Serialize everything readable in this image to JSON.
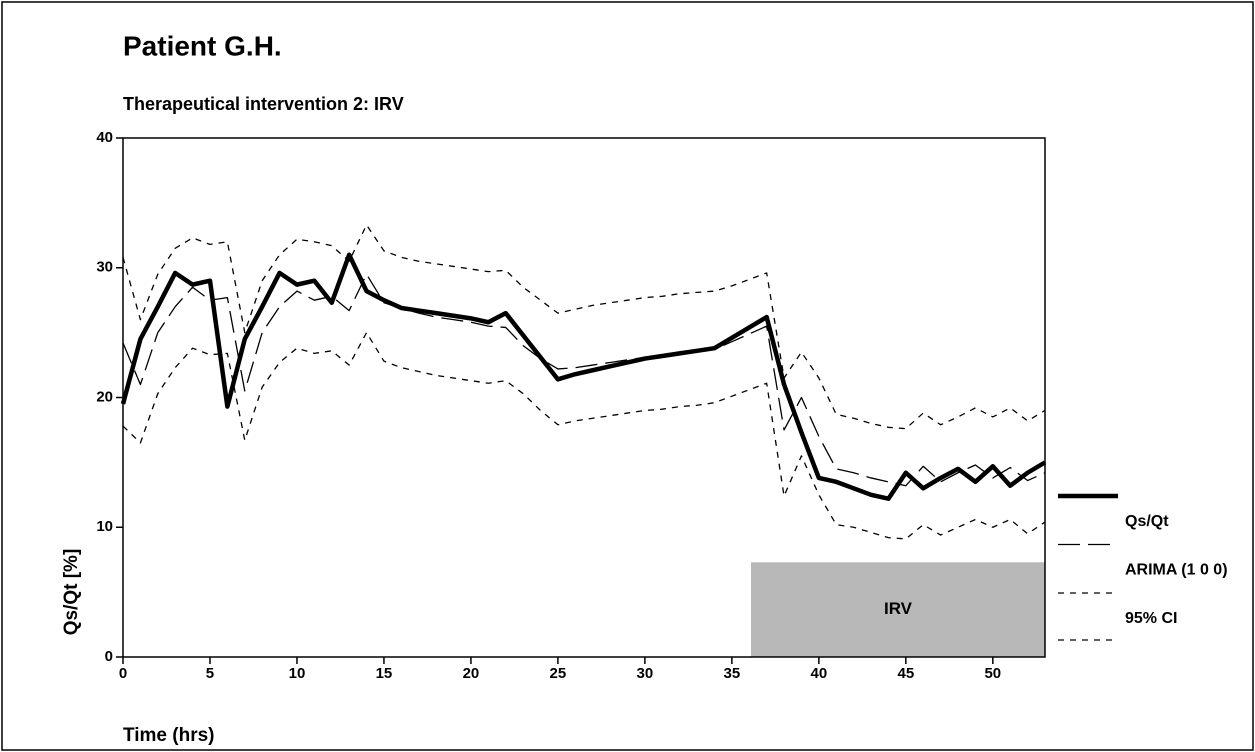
{
  "chart_data": {
    "type": "line",
    "title": "Patient G.H.",
    "subtitle": "Therapeutical intervention 2: IRV",
    "x_label": "Time (hrs)",
    "y_label": "Qs/Qt [%]",
    "x": [
      0,
      1,
      2,
      3,
      4,
      5,
      6,
      7,
      8,
      9,
      10,
      11,
      12,
      13,
      14,
      15,
      16,
      17,
      18,
      19,
      20,
      21,
      22,
      23,
      24,
      25,
      26,
      27,
      28,
      29,
      30,
      31,
      32,
      33,
      34,
      35,
      36,
      37,
      38,
      39,
      40,
      41,
      42,
      43,
      44,
      45,
      46,
      47,
      48,
      49,
      50,
      51,
      52,
      53
    ],
    "xlim": [
      0,
      53
    ],
    "xticks": [
      0,
      5,
      10,
      15,
      20,
      25,
      30,
      35,
      40,
      45,
      50
    ],
    "ylim": [
      0,
      40
    ],
    "yticks": [
      0,
      10,
      20,
      30,
      40
    ],
    "series": [
      {
        "name": "Qs/Qt",
        "color": "#000000",
        "style": "solid",
        "values": [
          19.5,
          24.5,
          27,
          29.6,
          28.7,
          29,
          19.3,
          24.5,
          27,
          29.6,
          28.7,
          29,
          27.3,
          31,
          28.2,
          27.5,
          26.9,
          26.7,
          26.5,
          26.3,
          26.1,
          25.8,
          26.5,
          24.8,
          23.1,
          21.4,
          21.8,
          22.1,
          22.4,
          22.7,
          23,
          23.2,
          23.4,
          23.6,
          23.8,
          24.6,
          25.4,
          26.2,
          21,
          17.3,
          13.8,
          13.5,
          13,
          12.5,
          12.2,
          14.2,
          13,
          13.8,
          14.5,
          13.5,
          14.7,
          13.2,
          14.2,
          15
        ]
      },
      {
        "name": "ARIMA (1 0 0)",
        "color": "#000000",
        "style": "longdash",
        "values": [
          24.2,
          21,
          25,
          27,
          28.5,
          27.5,
          27.7,
          20.5,
          25,
          27,
          28.2,
          27.5,
          27.8,
          26.7,
          29.5,
          27.3,
          26.9,
          26.5,
          26.2,
          26,
          25.8,
          25.5,
          25.4,
          24,
          23,
          22.2,
          22.3,
          22.5,
          22.7,
          22.9,
          23.1,
          23.3,
          23.5,
          23.6,
          23.7,
          24.3,
          24.9,
          25.5,
          17.5,
          20,
          17,
          14.5,
          14.2,
          13.8,
          13.5,
          13.2,
          14.7,
          13.5,
          14.2,
          14.8,
          13.8,
          14.6,
          13.6,
          14.2
        ]
      },
      {
        "name": "95% CI",
        "color": "#000000",
        "style": "shortdash",
        "upper": [
          30.8,
          26,
          29.5,
          31.5,
          32.3,
          31.8,
          32,
          25,
          29,
          31,
          32.2,
          32,
          31.7,
          30.5,
          33.3,
          31.3,
          30.8,
          30.5,
          30.3,
          30.1,
          29.9,
          29.7,
          29.8,
          28.5,
          27.5,
          26.5,
          26.8,
          27.1,
          27.3,
          27.5,
          27.7,
          27.8,
          28,
          28.1,
          28.2,
          28.6,
          29.1,
          29.6,
          21.5,
          23.5,
          21.5,
          18.7,
          18.4,
          18,
          17.7,
          17.6,
          18.8,
          17.9,
          18.5,
          19.2,
          18.5,
          19.2,
          18.2,
          19
        ],
        "lower": [
          17.8,
          16.5,
          20.3,
          22.3,
          23.8,
          23.3,
          23.4,
          16.7,
          20.8,
          22.7,
          23.8,
          23.4,
          23.6,
          22.5,
          25,
          22.8,
          22.3,
          22,
          21.7,
          21.5,
          21.3,
          21.1,
          21.3,
          20.3,
          19,
          17.9,
          18.2,
          18.4,
          18.6,
          18.8,
          19,
          19.1,
          19.3,
          19.4,
          19.6,
          20.1,
          20.6,
          21.1,
          12.4,
          15.5,
          12.5,
          10.2,
          10,
          9.6,
          9.2,
          9.1,
          10.2,
          9.4,
          10,
          10.6,
          10,
          10.6,
          9.5,
          10.4
        ]
      }
    ],
    "shade": {
      "label": "IRV",
      "color": "#b8b8b8",
      "x": [
        36.1,
        53
      ],
      "y": [
        0,
        7.3
      ]
    }
  }
}
